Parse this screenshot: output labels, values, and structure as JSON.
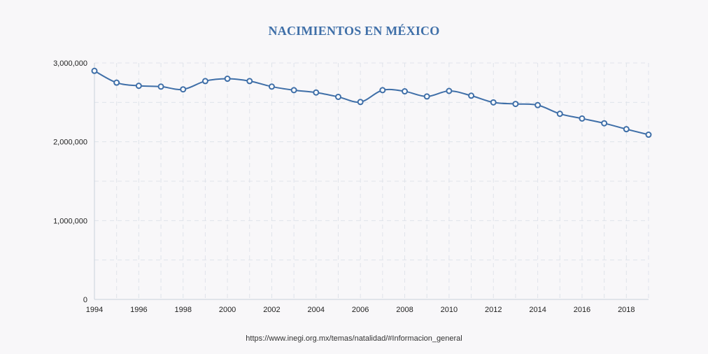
{
  "chart_data": {
    "type": "line",
    "title": "NACIMIENTOS EN MÉXICO",
    "source": "https://www.inegi.org.mx/temas/natalidad/#Informacion_general",
    "xlabel": "",
    "ylabel": "",
    "x": [
      1994,
      1995,
      1996,
      1997,
      1998,
      1999,
      2000,
      2001,
      2002,
      2003,
      2004,
      2005,
      2006,
      2007,
      2008,
      2009,
      2010,
      2011,
      2012,
      2013,
      2014,
      2015,
      2016,
      2017,
      2018,
      2019
    ],
    "series": [
      {
        "values": [
          2900000,
          2750000,
          2710000,
          2700000,
          2665000,
          2770000,
          2800000,
          2770000,
          2700000,
          2655000,
          2625000,
          2570000,
          2505000,
          2655000,
          2640000,
          2575000,
          2645000,
          2585000,
          2500000,
          2480000,
          2465000,
          2355000,
          2295000,
          2235000,
          2160000,
          2090000
        ],
        "color": "#3f6fa8"
      }
    ],
    "x_ticks": [
      "1994",
      "1996",
      "1998",
      "2000",
      "2002",
      "2004",
      "2006",
      "2008",
      "2010",
      "2012",
      "2014",
      "2016",
      "2018"
    ],
    "y_ticks": [
      "0",
      "1,000,000",
      "2,000,000",
      "3,000,000"
    ],
    "xlim": [
      1994,
      2019
    ],
    "ylim": [
      0,
      3000000
    ],
    "grid": true,
    "legend": "none"
  }
}
